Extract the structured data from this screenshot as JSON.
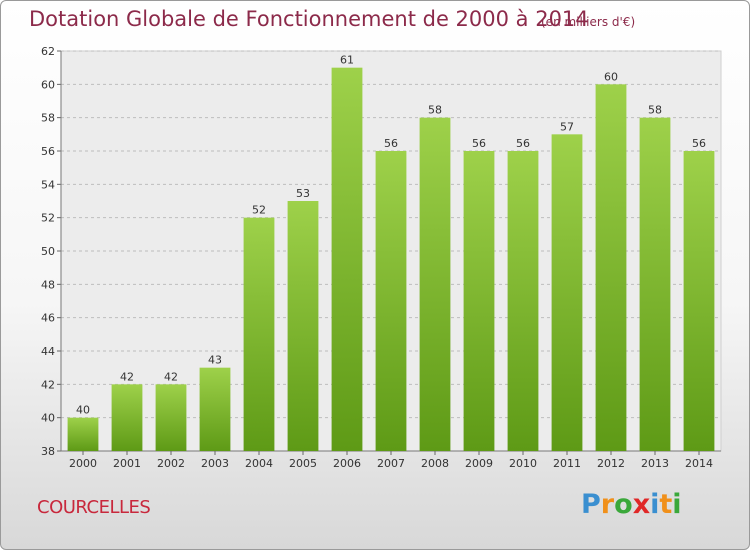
{
  "chart_data": {
    "type": "bar",
    "title": "Dotation Globale de Fonctionnement de 2000 à 2014",
    "subtitle": "(en milliers d'€)",
    "categories": [
      "2000",
      "2001",
      "2002",
      "2003",
      "2004",
      "2005",
      "2006",
      "2007",
      "2008",
      "2009",
      "2010",
      "2011",
      "2012",
      "2013",
      "2014"
    ],
    "values": [
      40,
      42,
      42,
      43,
      52,
      53,
      61,
      56,
      58,
      56,
      56,
      57,
      60,
      58,
      56
    ],
    "ylim": [
      38,
      62
    ],
    "yticks": [
      38,
      40,
      42,
      44,
      46,
      48,
      50,
      52,
      54,
      56,
      58,
      60,
      62
    ],
    "xlabel": "",
    "ylabel": "",
    "grid": true,
    "bar_color_top": "#9ed14a",
    "bar_color_bottom": "#5e9a16"
  },
  "commune": "COURCELLES",
  "logo": {
    "letters": [
      "P",
      "r",
      "o",
      "x",
      "i",
      "t",
      "i"
    ],
    "colors": [
      "#3a8fd0",
      "#f0901a",
      "#3aa83a",
      "#e02828",
      "#3a8fd0",
      "#f0901a",
      "#3aa83a"
    ]
  }
}
